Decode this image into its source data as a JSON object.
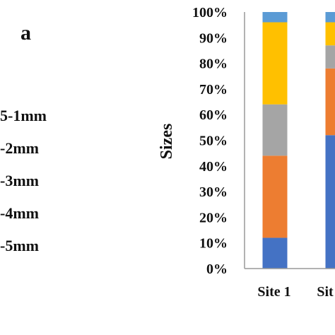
{
  "panel_label": "a",
  "legend_items": [
    {
      "text": "5-1mm",
      "color": "#4472C4"
    },
    {
      "text": "-2mm",
      "color": "#ED7D31"
    },
    {
      "text": "-3mm",
      "color": "#A5A5A5"
    },
    {
      "text": "-4mm",
      "color": "#FFC000"
    },
    {
      "text": "-5mm",
      "color": "#5B9BD5"
    }
  ],
  "chart_data": {
    "type": "bar",
    "stacked": true,
    "ylabel": "Sizes",
    "ylim": [
      0,
      100
    ],
    "y_ticks": [
      "0%",
      "10%",
      "20%",
      "30%",
      "40%",
      "50%",
      "60%",
      "70%",
      "80%",
      "90%",
      "100%"
    ],
    "categories": [
      "Site 1",
      "Sit"
    ],
    "series": [
      {
        "color": "#4472C4",
        "values": [
          12,
          52
        ]
      },
      {
        "color": "#ED7D31",
        "values": [
          32,
          26
        ]
      },
      {
        "color": "#A5A5A5",
        "values": [
          20,
          9
        ]
      },
      {
        "color": "#FFC000",
        "values": [
          32,
          9
        ]
      },
      {
        "color": "#5B9BD5",
        "values": [
          4,
          4
        ]
      }
    ]
  }
}
